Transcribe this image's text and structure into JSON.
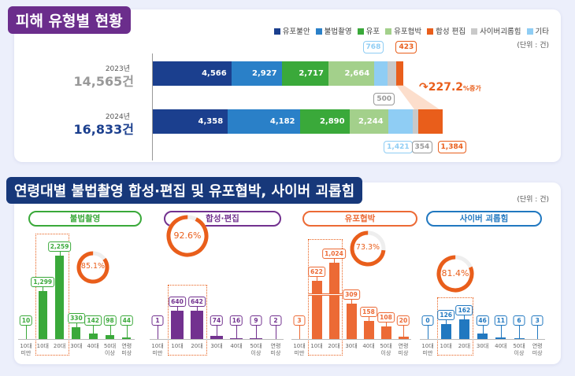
{
  "section1": {
    "title": "피해 유형별 현황",
    "unit": "(단위 : 건)",
    "legend": [
      {
        "label": "유포불안",
        "color": "#1b3f8e"
      },
      {
        "label": "불법촬영",
        "color": "#2a80c8"
      },
      {
        "label": "유포",
        "color": "#3aa93a"
      },
      {
        "label": "유포협박",
        "color": "#a3d08b"
      },
      {
        "label": "합성 편집",
        "color": "#e95e1b"
      },
      {
        "label": "사이버괴롭힘",
        "color": "#c9c9c9"
      },
      {
        "label": "기타",
        "color": "#8fcdf4"
      }
    ],
    "increase": {
      "value": "227.2",
      "suffix": "%증가"
    }
  },
  "chart_data": [
    {
      "type": "bar",
      "stacked": true,
      "orientation": "horizontal",
      "unit": "건",
      "categories": [
        "2023년",
        "2024년"
      ],
      "totals": [
        "14,565건",
        "16,833건"
      ],
      "series": [
        {
          "name": "유포불안",
          "values": [
            4566,
            4358
          ],
          "labels": [
            "4,566",
            "4,358"
          ]
        },
        {
          "name": "불법촬영",
          "values": [
            2927,
            4182
          ],
          "labels": [
            "2,927",
            "4,182"
          ]
        },
        {
          "name": "유포",
          "values": [
            2717,
            2890
          ],
          "labels": [
            "2,717",
            "2,890"
          ]
        },
        {
          "name": "유포협박",
          "values": [
            2664,
            2244
          ],
          "labels": [
            "2,664",
            "2,244"
          ]
        },
        {
          "name": "기타",
          "values": [
            768,
            1421
          ],
          "labels": [
            "768",
            "1,421"
          ]
        },
        {
          "name": "사이버괴롭힘",
          "values": [
            500,
            354
          ],
          "labels": [
            "500",
            "354"
          ]
        },
        {
          "name": "합성 편집",
          "values": [
            423,
            1384
          ],
          "labels": [
            "423",
            "1,384"
          ]
        }
      ]
    },
    {
      "type": "bar",
      "title": "불법촬영",
      "color": "#3aa93a",
      "categories": [
        "10대\n미만",
        "10대",
        "20대",
        "30대",
        "40대",
        "50대\n이상",
        "연령\n미상"
      ],
      "values": [
        10,
        1299,
        2259,
        330,
        142,
        98,
        44
      ],
      "labels": [
        "10",
        "1,299",
        "2,259",
        "330",
        "142",
        "98",
        "44"
      ],
      "highlight_share": "85.1%",
      "share_value": 85.1
    },
    {
      "type": "bar",
      "title": "합성·편집",
      "color": "#72318f",
      "categories": [
        "10대\n미만",
        "10대",
        "20대",
        "30대",
        "40대",
        "50대\n이상",
        "연령\n미상"
      ],
      "values": [
        1,
        640,
        642,
        74,
        16,
        9,
        2
      ],
      "labels": [
        "1",
        "640",
        "642",
        "74",
        "16",
        "9",
        "2"
      ],
      "highlight_share": "92.6%",
      "share_value": 92.6
    },
    {
      "type": "bar",
      "title": "유포협박",
      "color": "#ec6a35",
      "categories": [
        "10대\n미만",
        "10대",
        "20대",
        "30대",
        "40대",
        "50대\n이상",
        "연령\n미상"
      ],
      "values": [
        3,
        622,
        1024,
        309,
        158,
        108,
        20
      ],
      "labels": [
        "3",
        "622",
        "1,024",
        "309",
        "158",
        "108",
        "20"
      ],
      "highlight_share": "73.3%",
      "share_value": 73.3,
      "axis_break": true
    },
    {
      "type": "bar",
      "title": "사이버 괴롭힘",
      "color": "#2178c0",
      "categories": [
        "10대\n미만",
        "10대",
        "20대",
        "30대",
        "40대",
        "50대\n이상",
        "연령\n미상"
      ],
      "values": [
        0,
        126,
        162,
        46,
        11,
        6,
        3
      ],
      "labels": [
        "0",
        "126",
        "162",
        "46",
        "11",
        "6",
        "3"
      ],
      "highlight_share": "81.4%",
      "share_value": 81.4
    }
  ],
  "section2": {
    "title": "연령대별 불법촬영 합성·편집 및 유포협박, 사이버 괴롭힘",
    "unit": "(단위 : 건)"
  }
}
